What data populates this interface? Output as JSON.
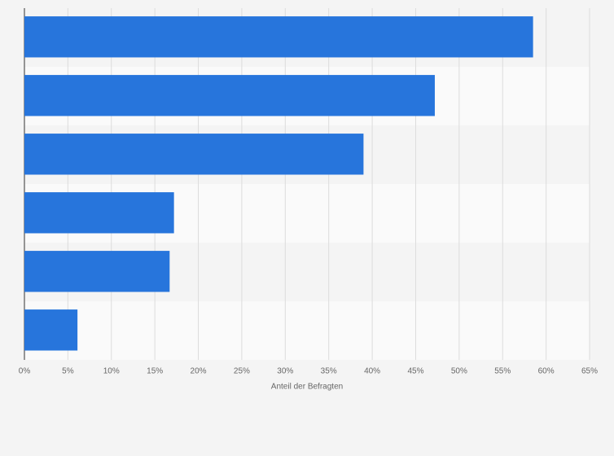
{
  "chart_data": {
    "type": "bar",
    "orientation": "horizontal",
    "categories": [
      null,
      null,
      null,
      null,
      null,
      null
    ],
    "values": [
      58.5,
      47.2,
      39.0,
      17.2,
      16.7,
      6.1
    ],
    "color": "#2775dc",
    "xlabel": "Anteil der Befragten",
    "xlim": [
      0,
      65
    ],
    "xticks": [
      {
        "value": 0,
        "label": "0%"
      },
      {
        "value": 5,
        "label": "5%"
      },
      {
        "value": 10,
        "label": "10%"
      },
      {
        "value": 15,
        "label": "15%"
      },
      {
        "value": 20,
        "label": "20%"
      },
      {
        "value": 25,
        "label": "25%"
      },
      {
        "value": 30,
        "label": "30%"
      },
      {
        "value": 35,
        "label": "35%"
      },
      {
        "value": 40,
        "label": "40%"
      },
      {
        "value": 45,
        "label": "45%"
      },
      {
        "value": 50,
        "label": "50%"
      },
      {
        "value": 55,
        "label": "55%"
      },
      {
        "value": 60,
        "label": "60%"
      },
      {
        "value": 65,
        "label": "65%"
      }
    ],
    "grid": true
  }
}
